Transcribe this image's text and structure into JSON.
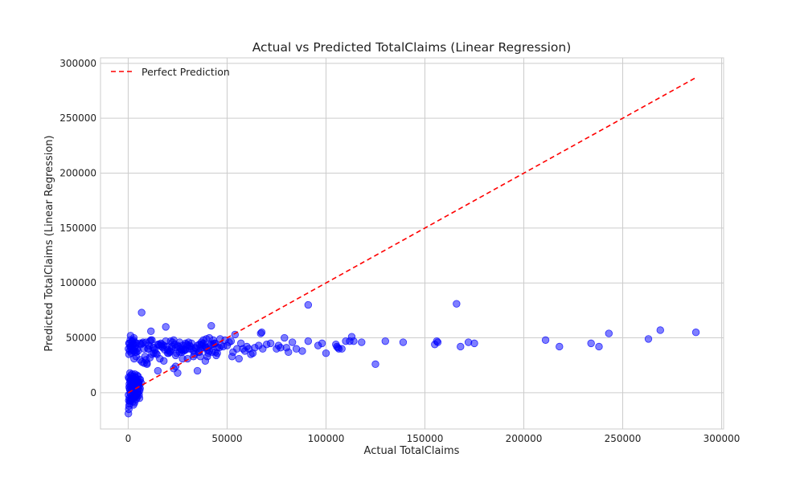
{
  "chart_data": {
    "type": "scatter",
    "title": "Actual vs Predicted TotalClaims (Linear Regression)",
    "xlabel": "Actual TotalClaims",
    "ylabel": "Predicted TotalClaims (Linear Regression)",
    "xlim": [
      -14000,
      301000
    ],
    "ylim": [
      -33000,
      305000
    ],
    "xticks": [
      0,
      50000,
      100000,
      150000,
      200000,
      250000,
      300000
    ],
    "yticks": [
      0,
      50000,
      100000,
      150000,
      200000,
      250000,
      300000
    ],
    "grid": true,
    "legend_position": "top-left",
    "colors": {
      "points": "#0000ff",
      "line": "#ff0000",
      "grid": "#cccccc",
      "axes": "#cccccc"
    },
    "reference_line": {
      "name": "Perfect Prediction",
      "style": "dashed",
      "x": [
        0,
        287000
      ],
      "y": [
        0,
        287000
      ]
    },
    "series": [
      {
        "x": [
          200,
          500,
          800,
          1200,
          1500,
          2000,
          2500,
          3000,
          3500,
          4000,
          4500,
          5000,
          5500,
          6000,
          300,
          700,
          1100,
          1700,
          2300,
          2900,
          3400,
          4100,
          4700,
          5200,
          5800,
          400,
          900,
          1300,
          1900,
          2600,
          3200,
          3800,
          4400,
          5100,
          5600,
          100,
          600,
          1000,
          1400,
          1800,
          2200,
          2700,
          3300,
          3900,
          4600,
          5300,
          6100,
          800,
          1600,
          2400,
          3100,
          3700,
          4300,
          4900,
          5400,
          500,
          1200,
          2100,
          2800,
          3600,
          4200,
          5000,
          5700,
          200,
          900,
          1500,
          2500,
          3500,
          4800,
          300,
          1000,
          2000,
          3000,
          4000,
          5500,
          600,
          1400,
          2400,
          3600,
          6500,
          150,
          450,
          750,
          1050,
          1350,
          1650,
          1950,
          2250,
          2550,
          2850,
          3150,
          3450,
          3750,
          400,
          1200,
          2600,
          4100,
          5900,
          3000,
          6800,
          10000,
          12000,
          15000,
          18000,
          21000,
          24000,
          26000,
          28000,
          30000,
          33000,
          36000,
          39000,
          42000,
          45000,
          1500,
          4000,
          8000,
          11000,
          14000,
          17000,
          20000,
          23000,
          25000,
          27000,
          29000,
          31000,
          34000,
          37000,
          40000,
          43000,
          2500,
          5000,
          9000,
          13000,
          16000,
          19000,
          22000,
          25500,
          28500,
          32000,
          35000,
          38000,
          41000,
          44000,
          1000,
          6000,
          7500,
          9500,
          12500,
          15500,
          18500,
          21500,
          24500,
          27500,
          30500,
          33500,
          36500,
          39500,
          42500,
          46000,
          2000,
          3500,
          10500,
          13500,
          16500,
          19500,
          22500,
          26500,
          29500,
          35500,
          38500,
          41500,
          44500,
          500,
          4500,
          8500,
          11500,
          17500,
          20500,
          23500,
          27000,
          31500,
          34500,
          37500,
          40500,
          43500,
          47000,
          7000,
          9000,
          11000,
          14500,
          18000,
          21000,
          24000,
          30000,
          33000,
          36000,
          39000,
          4000,
          8000,
          12000,
          16000,
          20000,
          24000,
          28000,
          32000,
          40000,
          44000,
          48000,
          1500,
          6500,
          10000,
          13000,
          22000,
          26000,
          29000,
          37000,
          43000,
          45000,
          7200,
          19000,
          11500,
          42000,
          15000,
          25000,
          35000,
          38000,
          41000,
          49000,
          3000,
          9500,
          17000,
          23000,
          27500,
          31000,
          36500,
          39500,
          46500,
          50000,
          52000,
          53000,
          55000,
          54000,
          51000,
          57000,
          58000,
          60000,
          62000,
          64000,
          66000,
          68000,
          70000,
          72000,
          75000,
          77000,
          79000,
          81000,
          83000,
          85000,
          88000,
          91000,
          96000,
          98000,
          100000,
          105000,
          106000,
          108000,
          112000,
          113000,
          114000,
          118000,
          125000,
          130000,
          139000,
          155000,
          156000,
          166000,
          168000,
          172000,
          175000,
          211000,
          218000,
          234000,
          238000,
          243000,
          263000,
          269000,
          287000,
          67000,
          67500,
          52500,
          56000,
          59000,
          63000,
          61000,
          91000,
          76000,
          80000,
          105500,
          106500,
          110000,
          156500
        ],
        "y": [
          -2000,
          5000,
          -8000,
          12000,
          -5000,
          8000,
          -3000,
          3000,
          14000,
          -6000,
          10000,
          6000,
          -2000,
          4000,
          -15000,
          -10000,
          0,
          2000,
          15000,
          -4000,
          9000,
          11000,
          -1000,
          7000,
          2000,
          -12000,
          18000,
          -7000,
          4000,
          13000,
          -9000,
          5000,
          16000,
          0,
          12000,
          -19000,
          -5000,
          10000,
          16000,
          -3000,
          6000,
          -11000,
          17000,
          8000,
          -4000,
          9000,
          12000,
          3000,
          7000,
          11000,
          1000,
          14000,
          -2000,
          3000,
          8000,
          13000,
          -1000,
          -6000,
          9000,
          1000,
          6000,
          15000,
          -5000,
          14000,
          3000,
          9000,
          -8000,
          4000,
          11000,
          -7000,
          6000,
          17000,
          10000,
          -3000,
          5000,
          8000,
          12000,
          2000,
          -4000,
          9000,
          40000,
          45000,
          38000,
          48000,
          42000,
          36000,
          47000,
          44000,
          39000,
          50000,
          41000,
          46000,
          43000,
          35000,
          52000,
          48000,
          37000,
          45000,
          38000,
          73000,
          40000,
          48000,
          44000,
          43000,
          37000,
          41000,
          46000,
          40000,
          43000,
          38000,
          44000,
          42000,
          44000,
          41000,
          42000,
          45000,
          40000,
          47000,
          36000,
          42000,
          39000,
          48000,
          43000,
          37000,
          45000,
          40000,
          41000,
          46000,
          39000,
          44000,
          44000,
          38000,
          46000,
          41000,
          43000,
          47000,
          40000,
          42000,
          39000,
          45000,
          43000,
          48000,
          38000,
          45000,
          42000,
          30000,
          46000,
          26000,
          41000,
          44000,
          39000,
          47000,
          36000,
          43000,
          46000,
          35000,
          40000,
          49000,
          37000,
          41000,
          47000,
          37000,
          43000,
          39000,
          45000,
          42000,
          46000,
          40000,
          44000,
          37000,
          41000,
          43000,
          34000,
          45000,
          40000,
          33000,
          48000,
          41000,
          36000,
          44000,
          39000,
          42000,
          40000,
          43000,
          36000,
          45000,
          43000,
          28000,
          30000,
          32000,
          35000,
          29000,
          38000,
          24000,
          31000,
          33000,
          37000,
          29000,
          33000,
          27000,
          35000,
          31000,
          36000,
          34000,
          38000,
          40000,
          33000,
          37000,
          42000,
          39000,
          44000,
          40000,
          36000,
          42000,
          37000,
          39000,
          44000,
          48000,
          36000,
          45000,
          60000,
          56000,
          61000,
          20000,
          18000,
          20000,
          45000,
          50000,
          48000,
          31000,
          27000,
          44000,
          22000,
          31000,
          43000,
          33000,
          41000,
          49000,
          43000,
          47000,
          37000,
          40000,
          53000,
          46000,
          45000,
          40000,
          42000,
          35000,
          41000,
          43000,
          40000,
          44000,
          45000,
          40000,
          41000,
          50000,
          37000,
          46000,
          40000,
          38000,
          47000,
          43000,
          45000,
          36000,
          44000,
          41000,
          40000,
          47000,
          51000,
          47000,
          46000,
          26000,
          47000,
          46000,
          44000,
          47000,
          81000,
          42000,
          46000,
          45000,
          48000,
          42000,
          45000,
          42000,
          54000,
          49000,
          57000,
          55000,
          54000,
          55000,
          33000,
          31000,
          38000,
          36000,
          40000,
          80000,
          43000,
          41000,
          42000,
          40000,
          47000,
          46000
        ]
      }
    ]
  }
}
